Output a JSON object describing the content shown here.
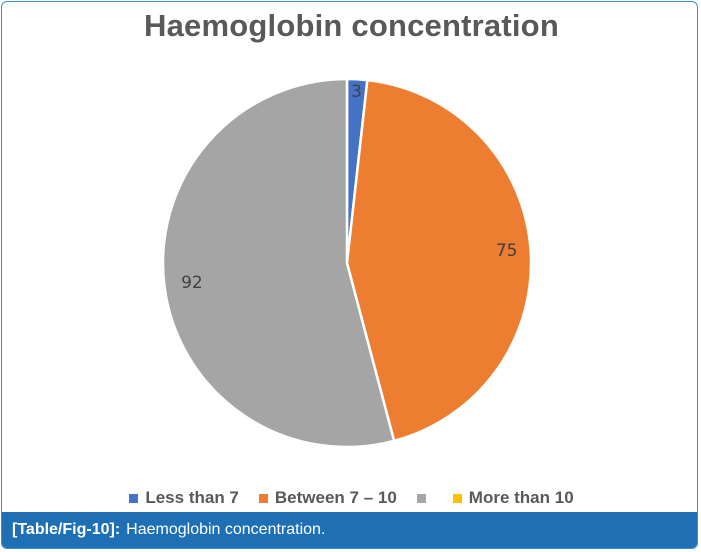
{
  "chart_data": {
    "type": "pie",
    "title": "Haemoglobin concentration",
    "categories": [
      "Less than 7",
      "Between 7 – 10",
      "",
      "More than 10"
    ],
    "values": [
      3,
      75,
      92,
      0
    ],
    "colors": [
      "#4472c4",
      "#ed7d31",
      "#a5a5a5",
      "#ffc000"
    ],
    "data_labels": [
      "3",
      "75",
      "92",
      ""
    ],
    "legend_position": "bottom"
  },
  "caption": {
    "ref": "[Table/Fig-10]:",
    "text": "Haemoglobin concentration."
  }
}
